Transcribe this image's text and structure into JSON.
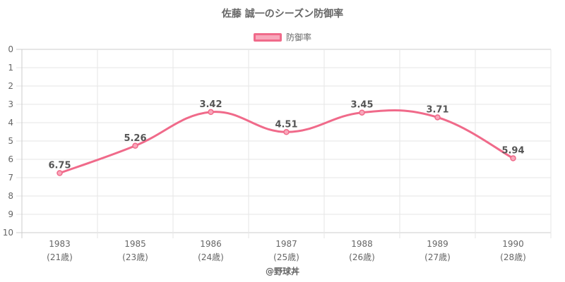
{
  "chart_data": {
    "type": "line",
    "title": "佐藤 誠一のシーズン防御率",
    "categories": [
      "1983",
      "1985",
      "1986",
      "1987",
      "1988",
      "1989",
      "1990"
    ],
    "category_sublabels": [
      "(21歳)",
      "(23歳)",
      "(24歳)",
      "(25歳)",
      "(26歳)",
      "(27歳)",
      "(28歳)"
    ],
    "series": [
      {
        "name": "防御率",
        "values": [
          6.75,
          5.26,
          3.42,
          4.51,
          3.45,
          3.71,
          5.94
        ],
        "labels": [
          "6.75",
          "5.26",
          "3.42",
          "4.51",
          "3.45",
          "3.71",
          "5.94"
        ],
        "color": "#f06a8a",
        "fill": "#f8a8bb"
      }
    ],
    "y_ticks": [
      "0",
      "1",
      "2",
      "3",
      "4",
      "5",
      "6",
      "7",
      "8",
      "9",
      "10"
    ],
    "ylim": [
      0,
      10
    ],
    "y_reversed": true,
    "grid": true,
    "legend": "top-center"
  },
  "watermark": "@野球丼"
}
